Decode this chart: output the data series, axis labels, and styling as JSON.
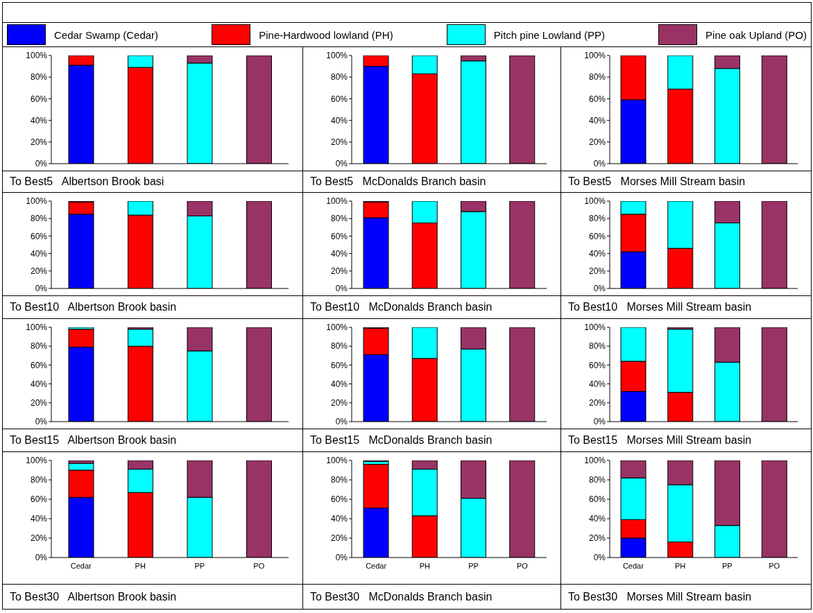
{
  "chart_data": [
    {
      "type": "bar",
      "stacked": true,
      "legend": "top",
      "xlabel": "To Best5   Albertson Brook basi",
      "categories": [
        null,
        null,
        null,
        null
      ],
      "ylim": [
        0,
        100
      ],
      "yticks": [
        {
          "value": 0,
          "label": "0%"
        },
        {
          "value": 20,
          "label": "20%"
        },
        {
          "value": 40,
          "label": "40%"
        },
        {
          "value": 60,
          "label": "60%"
        },
        {
          "value": 80,
          "label": "80%"
        },
        {
          "value": 100,
          "label": "100%"
        }
      ],
      "series": [
        {
          "name": "Cedar Swamp (Cedar)",
          "color": "#0000ff",
          "values": [
            91,
            0,
            0,
            0
          ]
        },
        {
          "name": "Pine-Hardwood lowland (PH)",
          "color": "#ff0000",
          "values": [
            9,
            89,
            0,
            0
          ]
        },
        {
          "name": "Pitch pine Lowland (PP)",
          "color": "#00ffff",
          "values": [
            0,
            11,
            93,
            0
          ]
        },
        {
          "name": "Pine oak Upland (PO)",
          "color": "#993366",
          "values": [
            0,
            0,
            7,
            100
          ]
        }
      ]
    },
    {
      "type": "bar",
      "stacked": true,
      "xlabel": "To Best5   McDonalds Branch basin",
      "categories": [
        null,
        null,
        null,
        null
      ],
      "ylim": [
        0,
        100
      ],
      "yticks": [
        {
          "value": 0,
          "label": "0%"
        },
        {
          "value": 20,
          "label": "20%"
        },
        {
          "value": 40,
          "label": "40%"
        },
        {
          "value": 60,
          "label": "60%"
        },
        {
          "value": 80,
          "label": "80%"
        },
        {
          "value": 100,
          "label": "100%"
        }
      ],
      "series": [
        {
          "color": "#0000ff",
          "values": [
            90,
            0,
            0,
            0
          ]
        },
        {
          "color": "#ff0000",
          "values": [
            10,
            83,
            0,
            0
          ]
        },
        {
          "color": "#00ffff",
          "values": [
            0,
            17,
            95,
            0
          ]
        },
        {
          "color": "#993366",
          "values": [
            0,
            0,
            5,
            100
          ]
        }
      ]
    },
    {
      "type": "bar",
      "stacked": true,
      "xlabel": "To Best5   Morses Mill Stream basin",
      "categories": [
        null,
        null,
        null,
        null
      ],
      "ylim": [
        0,
        100
      ],
      "yticks": [
        {
          "value": 0,
          "label": "0%"
        },
        {
          "value": 20,
          "label": "20%"
        },
        {
          "value": 40,
          "label": "40%"
        },
        {
          "value": 60,
          "label": "60%"
        },
        {
          "value": 80,
          "label": "80%"
        },
        {
          "value": 100,
          "label": "100%"
        }
      ],
      "series": [
        {
          "color": "#0000ff",
          "values": [
            59,
            0,
            0,
            0
          ]
        },
        {
          "color": "#ff0000",
          "values": [
            41,
            69,
            0,
            0
          ]
        },
        {
          "color": "#00ffff",
          "values": [
            0,
            31,
            88,
            0
          ]
        },
        {
          "color": "#993366",
          "values": [
            0,
            0,
            12,
            100
          ]
        }
      ]
    },
    {
      "type": "bar",
      "stacked": true,
      "xlabel": "To Best10   Albertson Brook basin",
      "categories": [
        null,
        null,
        null,
        null
      ],
      "ylim": [
        0,
        100
      ],
      "yticks": [
        {
          "value": 0,
          "label": "0%"
        },
        {
          "value": 20,
          "label": "20%"
        },
        {
          "value": 40,
          "label": "40%"
        },
        {
          "value": 60,
          "label": "60%"
        },
        {
          "value": 80,
          "label": "80%"
        },
        {
          "value": 100,
          "label": "100%"
        }
      ],
      "series": [
        {
          "color": "#0000ff",
          "values": [
            85,
            0,
            0,
            0
          ]
        },
        {
          "color": "#ff0000",
          "values": [
            14,
            84,
            0,
            0
          ]
        },
        {
          "color": "#00ffff",
          "values": [
            0,
            16,
            83,
            0
          ]
        },
        {
          "color": "#993366",
          "values": [
            1,
            0,
            17,
            100
          ]
        }
      ]
    },
    {
      "type": "bar",
      "stacked": true,
      "xlabel": "To Best10   McDonalds Branch basin",
      "categories": [
        null,
        null,
        null,
        null
      ],
      "ylim": [
        0,
        100
      ],
      "yticks": [
        {
          "value": 0,
          "label": "0%"
        },
        {
          "value": 20,
          "label": "20%"
        },
        {
          "value": 40,
          "label": "40%"
        },
        {
          "value": 60,
          "label": "60%"
        },
        {
          "value": 80,
          "label": "80%"
        },
        {
          "value": 100,
          "label": "100%"
        }
      ],
      "series": [
        {
          "color": "#0000ff",
          "values": [
            81,
            0,
            0,
            0
          ]
        },
        {
          "color": "#ff0000",
          "values": [
            18,
            75,
            0,
            0
          ]
        },
        {
          "color": "#00ffff",
          "values": [
            0,
            25,
            88,
            0
          ]
        },
        {
          "color": "#993366",
          "values": [
            1,
            0,
            12,
            100
          ]
        }
      ]
    },
    {
      "type": "bar",
      "stacked": true,
      "xlabel": "To Best10   Morses Mill Stream basin",
      "categories": [
        null,
        null,
        null,
        null
      ],
      "ylim": [
        0,
        100
      ],
      "yticks": [
        {
          "value": 0,
          "label": "0%"
        },
        {
          "value": 20,
          "label": "20%"
        },
        {
          "value": 40,
          "label": "40%"
        },
        {
          "value": 60,
          "label": "60%"
        },
        {
          "value": 80,
          "label": "80%"
        },
        {
          "value": 100,
          "label": "100%"
        }
      ],
      "series": [
        {
          "color": "#0000ff",
          "values": [
            42,
            0,
            0,
            0
          ]
        },
        {
          "color": "#ff0000",
          "values": [
            43,
            46,
            0,
            0
          ]
        },
        {
          "color": "#00ffff",
          "values": [
            15,
            54,
            75,
            0
          ]
        },
        {
          "color": "#993366",
          "values": [
            0,
            0,
            25,
            100
          ]
        }
      ]
    },
    {
      "type": "bar",
      "stacked": true,
      "xlabel": "To Best15   Albertson Brook basin",
      "categories": [
        null,
        null,
        null,
        null
      ],
      "ylim": [
        0,
        100
      ],
      "yticks": [
        {
          "value": 0,
          "label": "0%"
        },
        {
          "value": 20,
          "label": "20%"
        },
        {
          "value": 40,
          "label": "40%"
        },
        {
          "value": 60,
          "label": "60%"
        },
        {
          "value": 80,
          "label": "80%"
        },
        {
          "value": 100,
          "label": "100%"
        }
      ],
      "series": [
        {
          "color": "#0000ff",
          "values": [
            79,
            0,
            0,
            0
          ]
        },
        {
          "color": "#ff0000",
          "values": [
            19,
            80,
            0,
            0
          ]
        },
        {
          "color": "#00ffff",
          "values": [
            2,
            18,
            75,
            0
          ]
        },
        {
          "color": "#993366",
          "values": [
            0,
            2,
            25,
            100
          ]
        }
      ]
    },
    {
      "type": "bar",
      "stacked": true,
      "xlabel": "To Best15   McDonalds Branch basin",
      "categories": [
        null,
        null,
        null,
        null
      ],
      "ylim": [
        0,
        100
      ],
      "yticks": [
        {
          "value": 0,
          "label": "0%"
        },
        {
          "value": 20,
          "label": "20%"
        },
        {
          "value": 40,
          "label": "40%"
        },
        {
          "value": 60,
          "label": "60%"
        },
        {
          "value": 80,
          "label": "80%"
        },
        {
          "value": 100,
          "label": "100%"
        }
      ],
      "series": [
        {
          "color": "#0000ff",
          "values": [
            71,
            0,
            0,
            0
          ]
        },
        {
          "color": "#ff0000",
          "values": [
            28,
            67,
            0,
            0
          ]
        },
        {
          "color": "#00ffff",
          "values": [
            0,
            33,
            77,
            0
          ]
        },
        {
          "color": "#993366",
          "values": [
            1,
            0,
            23,
            100
          ]
        }
      ]
    },
    {
      "type": "bar",
      "stacked": true,
      "xlabel": "To Best15   Morses Mill Stream basin",
      "categories": [
        null,
        null,
        null,
        null
      ],
      "ylim": [
        0,
        100
      ],
      "yticks": [
        {
          "value": 0,
          "label": "0%"
        },
        {
          "value": 20,
          "label": "20%"
        },
        {
          "value": 40,
          "label": "40%"
        },
        {
          "value": 60,
          "label": "60%"
        },
        {
          "value": 80,
          "label": "80%"
        },
        {
          "value": 100,
          "label": "100%"
        }
      ],
      "series": [
        {
          "color": "#0000ff",
          "values": [
            32,
            0,
            0,
            0
          ]
        },
        {
          "color": "#ff0000",
          "values": [
            32,
            31,
            0,
            0
          ]
        },
        {
          "color": "#00ffff",
          "values": [
            36,
            67,
            63,
            0
          ]
        },
        {
          "color": "#993366",
          "values": [
            0,
            2,
            37,
            100
          ]
        }
      ]
    },
    {
      "type": "bar",
      "stacked": true,
      "xlabel": "To Best30   Albertson Brook basin",
      "categories": [
        "Cedar",
        "PH",
        "PP",
        "PO"
      ],
      "ylim": [
        0,
        100
      ],
      "yticks": [
        {
          "value": 0,
          "label": "0%"
        },
        {
          "value": 20,
          "label": "20%"
        },
        {
          "value": 40,
          "label": "40%"
        },
        {
          "value": 60,
          "label": "60%"
        },
        {
          "value": 80,
          "label": "80%"
        },
        {
          "value": 100,
          "label": "100%"
        }
      ],
      "series": [
        {
          "color": "#0000ff",
          "values": [
            62,
            0,
            0,
            0
          ]
        },
        {
          "color": "#ff0000",
          "values": [
            28,
            67,
            0,
            0
          ]
        },
        {
          "color": "#00ffff",
          "values": [
            7,
            24,
            62,
            0
          ]
        },
        {
          "color": "#993366",
          "values": [
            3,
            9,
            38,
            100
          ]
        }
      ]
    },
    {
      "type": "bar",
      "stacked": true,
      "xlabel": "To Best30   McDonalds Branch basin",
      "categories": [
        "Cedar",
        "PH",
        "PP",
        "PO"
      ],
      "ylim": [
        0,
        100
      ],
      "yticks": [
        {
          "value": 0,
          "label": "0%"
        },
        {
          "value": 20,
          "label": "20%"
        },
        {
          "value": 40,
          "label": "40%"
        },
        {
          "value": 60,
          "label": "60%"
        },
        {
          "value": 80,
          "label": "80%"
        },
        {
          "value": 100,
          "label": "100%"
        }
      ],
      "series": [
        {
          "color": "#0000ff",
          "values": [
            51,
            0,
            0,
            0
          ]
        },
        {
          "color": "#ff0000",
          "values": [
            45,
            43,
            0,
            0
          ]
        },
        {
          "color": "#00ffff",
          "values": [
            3,
            48,
            61,
            0
          ]
        },
        {
          "color": "#993366",
          "values": [
            1,
            9,
            39,
            100
          ]
        }
      ]
    },
    {
      "type": "bar",
      "stacked": true,
      "xlabel": "To Best30   Morses Mill Stream basin",
      "categories": [
        "Cedar",
        "PH",
        "PP",
        "PO"
      ],
      "ylim": [
        0,
        100
      ],
      "yticks": [
        {
          "value": 0,
          "label": "0%"
        },
        {
          "value": 20,
          "label": "20%"
        },
        {
          "value": 40,
          "label": "40%"
        },
        {
          "value": 60,
          "label": "60%"
        },
        {
          "value": 80,
          "label": "80%"
        },
        {
          "value": 100,
          "label": "100%"
        }
      ],
      "series": [
        {
          "color": "#0000ff",
          "values": [
            20,
            0,
            0,
            0
          ]
        },
        {
          "color": "#ff0000",
          "values": [
            19,
            16,
            0,
            0
          ]
        },
        {
          "color": "#00ffff",
          "values": [
            43,
            59,
            33,
            0
          ]
        },
        {
          "color": "#993366",
          "values": [
            18,
            25,
            67,
            100
          ]
        }
      ]
    }
  ]
}
